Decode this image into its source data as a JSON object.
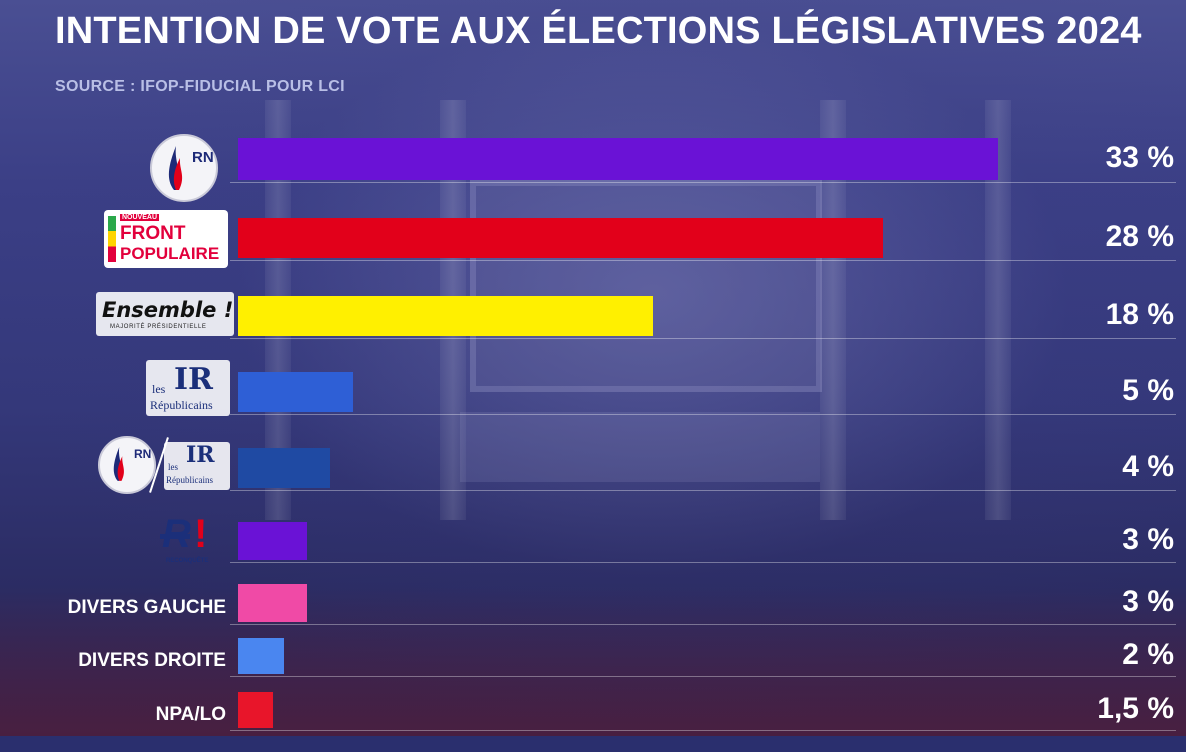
{
  "title": "INTENTION DE VOTE AUX ÉLECTIONS LÉGISLATIVES 2024",
  "source": "SOURCE : IFOP-FIDUCIAL POUR LCI",
  "logos": {
    "rn": "RN",
    "nfp_small": "NOUVEAU",
    "nfp_line1": "FRONT",
    "nfp_line2": "POPULAIRE",
    "ensemble": "Ensemble !",
    "ensemble_sub": "MAJORITÉ PRÉSIDENTIELLE",
    "lr_small_1": "les",
    "lr_small_2": "Républicains",
    "reconquete": "RECONQUÊTE"
  },
  "chart_data": {
    "type": "bar",
    "orientation": "horizontal",
    "title": "INTENTION DE VOTE AUX ÉLECTIONS LÉGISLATIVES 2024",
    "categories": [
      "RN",
      "Nouveau Front Populaire",
      "Ensemble !",
      "Les Républicains",
      "RN / Les Républicains",
      "Reconquête",
      "DIVERS GAUCHE",
      "DIVERS DROITE",
      "NPA/LO"
    ],
    "values": [
      33,
      28,
      18,
      5,
      4,
      3,
      3,
      2,
      1.5
    ],
    "value_labels": [
      "33 %",
      "28 %",
      "18 %",
      "5 %",
      "4 %",
      "3 %",
      "3 %",
      "2 %",
      "1,5 %"
    ],
    "colors": [
      "#6a12d6",
      "#e2001a",
      "#fff000",
      "#2e5fd6",
      "#1f4aa3",
      "#6a12d6",
      "#f04aa6",
      "#4a86f0",
      "#e8152a"
    ],
    "text_labels": [
      "",
      "",
      "",
      "",
      "",
      "",
      "DIVERS GAUCHE",
      "DIVERS DROITE",
      "NPA/LO"
    ],
    "xlim": [
      0,
      33
    ],
    "grid": false
  }
}
